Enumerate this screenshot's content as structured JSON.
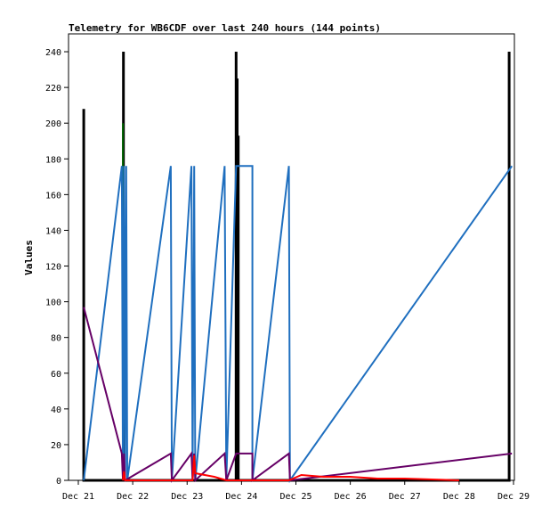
{
  "chart_data": {
    "type": "line",
    "title": "Telemetry for WB6CDF over last 240 hours (144 points)",
    "xlabel": "",
    "ylabel": "Values",
    "ylim": [
      0,
      250
    ],
    "y_ticks": [
      0,
      20,
      40,
      60,
      80,
      100,
      120,
      140,
      160,
      180,
      200,
      220,
      240
    ],
    "x_ticks": [
      "Dec 21",
      "Dec 22",
      "Dec 23",
      "Dec 24",
      "Dec 25",
      "Dec 26",
      "Dec 27",
      "Dec 28",
      "Dec 29"
    ],
    "xlim": [
      0,
      8
    ],
    "grid": false,
    "series": [
      {
        "color": "#000000",
        "points": [
          [
            0.1,
            0
          ],
          [
            0.1,
            208
          ],
          [
            0.1,
            0
          ],
          [
            0.83,
            0
          ],
          [
            0.83,
            240
          ],
          [
            0.83,
            0
          ],
          [
            2.9,
            0
          ],
          [
            2.9,
            240
          ],
          [
            2.9,
            0
          ],
          [
            2.92,
            0
          ],
          [
            2.92,
            225
          ],
          [
            2.92,
            0
          ],
          [
            2.94,
            0
          ],
          [
            2.94,
            193
          ],
          [
            2.94,
            0
          ],
          [
            7.92,
            0
          ],
          [
            7.92,
            240
          ],
          [
            7.92,
            0
          ]
        ]
      },
      {
        "color": "#006400",
        "points": [
          [
            0.82,
            0
          ],
          [
            0.82,
            200
          ],
          [
            0.82,
            0
          ]
        ]
      },
      {
        "color": "#1f6fbf",
        "points": [
          [
            0.1,
            0
          ],
          [
            0.8,
            176
          ],
          [
            0.82,
            0
          ],
          [
            0.84,
            176
          ],
          [
            0.86,
            0
          ],
          [
            0.88,
            176
          ],
          [
            0.9,
            0
          ],
          [
            1.7,
            176
          ],
          [
            1.72,
            0
          ],
          [
            2.08,
            176
          ],
          [
            2.1,
            0
          ],
          [
            2.13,
            176
          ],
          [
            2.15,
            0
          ],
          [
            2.69,
            176
          ],
          [
            2.72,
            0
          ],
          [
            2.9,
            176
          ],
          [
            3.2,
            176
          ],
          [
            3.2,
            0
          ],
          [
            3.87,
            176
          ],
          [
            3.89,
            0
          ],
          [
            7.97,
            176
          ]
        ]
      },
      {
        "color": "#660066",
        "points": [
          [
            0.1,
            97
          ],
          [
            0.8,
            15
          ],
          [
            0.82,
            0
          ],
          [
            0.84,
            15
          ],
          [
            0.86,
            0
          ],
          [
            1.7,
            15
          ],
          [
            1.72,
            0
          ],
          [
            2.08,
            15
          ],
          [
            2.1,
            0
          ],
          [
            2.13,
            15
          ],
          [
            2.15,
            0
          ],
          [
            2.69,
            15
          ],
          [
            2.72,
            0
          ],
          [
            2.9,
            15
          ],
          [
            3.2,
            15
          ],
          [
            3.2,
            0
          ],
          [
            3.87,
            15
          ],
          [
            3.89,
            0
          ],
          [
            7.97,
            15
          ]
        ]
      },
      {
        "color": "#ff0000",
        "points": [
          [
            0.82,
            0
          ],
          [
            0.84,
            5
          ],
          [
            0.86,
            0
          ],
          [
            2.1,
            0
          ],
          [
            2.13,
            14
          ],
          [
            2.15,
            4
          ],
          [
            2.5,
            2
          ],
          [
            2.72,
            0
          ],
          [
            3.87,
            0
          ],
          [
            4.1,
            3
          ],
          [
            4.5,
            2
          ],
          [
            5,
            2
          ],
          [
            5.5,
            1
          ],
          [
            6,
            1
          ],
          [
            7,
            0
          ]
        ]
      }
    ]
  }
}
